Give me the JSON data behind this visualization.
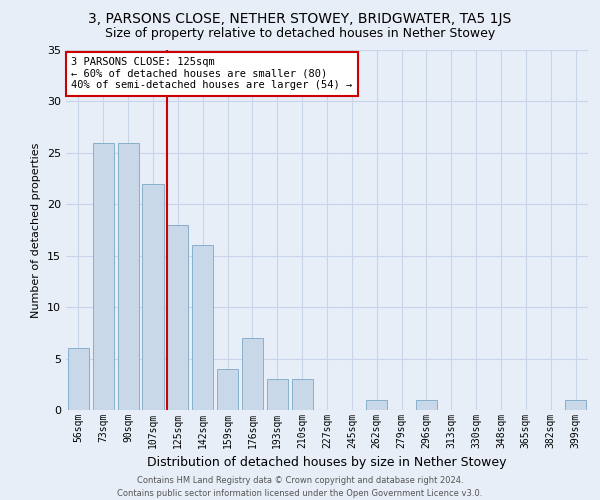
{
  "title": "3, PARSONS CLOSE, NETHER STOWEY, BRIDGWATER, TA5 1JS",
  "subtitle": "Size of property relative to detached houses in Nether Stowey",
  "xlabel": "Distribution of detached houses by size in Nether Stowey",
  "ylabel": "Number of detached properties",
  "categories": [
    "56sqm",
    "73sqm",
    "90sqm",
    "107sqm",
    "125sqm",
    "142sqm",
    "159sqm",
    "176sqm",
    "193sqm",
    "210sqm",
    "227sqm",
    "245sqm",
    "262sqm",
    "279sqm",
    "296sqm",
    "313sqm",
    "330sqm",
    "348sqm",
    "365sqm",
    "382sqm",
    "399sqm"
  ],
  "values": [
    6,
    26,
    26,
    22,
    18,
    16,
    4,
    7,
    3,
    3,
    0,
    0,
    1,
    0,
    1,
    0,
    0,
    0,
    0,
    0,
    1
  ],
  "bar_color": "#c8d8e8",
  "bar_edge_color": "#7aa8c8",
  "vline_x_index": 4,
  "vline_color": "#cc0000",
  "annotation_text": "3 PARSONS CLOSE: 125sqm\n← 60% of detached houses are smaller (80)\n40% of semi-detached houses are larger (54) →",
  "annotation_box_facecolor": "#ffffff",
  "annotation_box_edgecolor": "#cc0000",
  "ylim": [
    0,
    35
  ],
  "yticks": [
    0,
    5,
    10,
    15,
    20,
    25,
    30,
    35
  ],
  "grid_color": "#c8d4e8",
  "background_color": "#e8eef8",
  "footer_line1": "Contains HM Land Registry data © Crown copyright and database right 2024.",
  "footer_line2": "Contains public sector information licensed under the Open Government Licence v3.0.",
  "title_fontsize": 10,
  "subtitle_fontsize": 9,
  "xlabel_fontsize": 9,
  "ylabel_fontsize": 8,
  "tick_fontsize": 7,
  "annotation_fontsize": 7.5,
  "footer_fontsize": 6
}
